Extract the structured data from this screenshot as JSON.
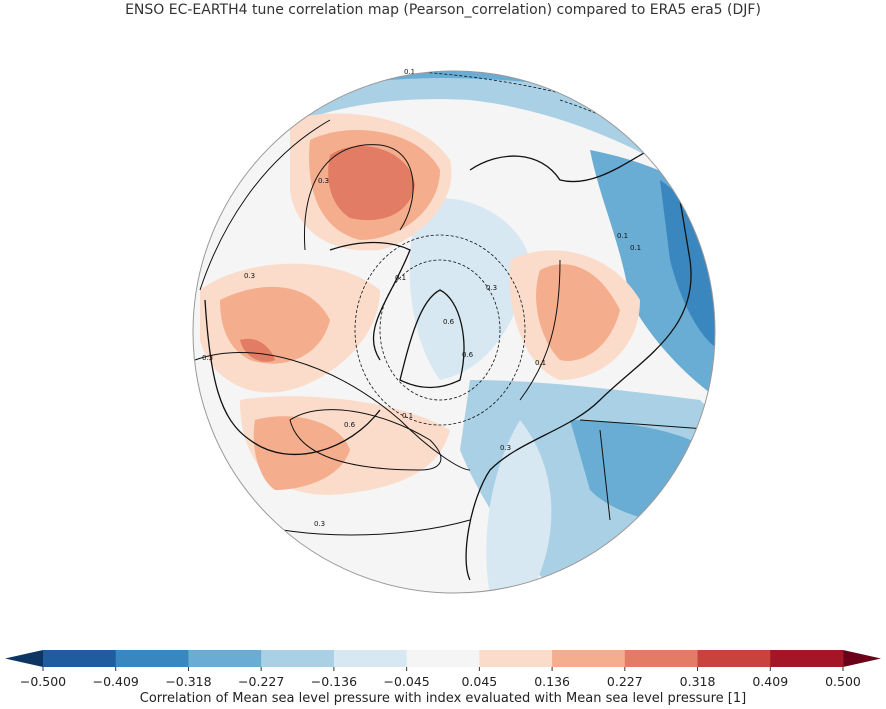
{
  "title": "ENSO EC-EARTH4 tune correlation map (Pearson_correlation) compared to ERA5 era5 (DJF)",
  "projection": "north-polar-stereographic",
  "colorbar": {
    "label": "Correlation of Mean sea level pressure with index evaluated with Mean sea level pressure [1]",
    "ticks": [
      "−0.500",
      "−0.409",
      "−0.318",
      "−0.227",
      "−0.136",
      "−0.045",
      "0.045",
      "0.136",
      "0.227",
      "0.318",
      "0.409",
      "0.500"
    ],
    "colors": [
      "#1f5d9f",
      "#3a87c0",
      "#6aadd4",
      "#a9d0e5",
      "#d8e8f2",
      "#f5f5f5",
      "#fbdccb",
      "#f4ad8d",
      "#e27c64",
      "#c9423c",
      "#a31527"
    ],
    "under_color": "#0d3563",
    "over_color": "#6b0019",
    "extend": "both"
  },
  "contour_labels": [
    "0.1",
    "0.3",
    "0.3",
    "0.3",
    "0.1",
    "0.3",
    "0.6",
    "0.6",
    "0.1",
    "0.6",
    "0.3",
    "0.1",
    "0.3",
    "0.1",
    "0.1"
  ]
}
